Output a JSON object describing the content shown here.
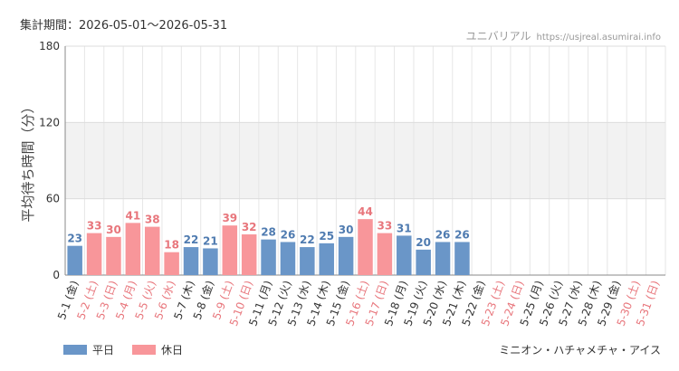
{
  "header": {
    "period": "集計期間：2026-05-01～2026-05-31",
    "site_name": "ユニバリアル",
    "site_url": "https://usjreal.asumirai.info"
  },
  "footer": {
    "attraction": "ミニオン・ハチャメチャ・アイス"
  },
  "colors": {
    "weekday": "#6a96c8",
    "holiday": "#f8969a",
    "weekday_label": "#4f7bb0",
    "holiday_label": "#e8767c",
    "band": "#f2f2f2",
    "grid": "#e6e6e6"
  },
  "chart_data": {
    "type": "bar",
    "ylabel": "平均待ち時間（分）",
    "xlabel": "",
    "ylim": [
      0,
      180
    ],
    "yticks": [
      0,
      60,
      120,
      180
    ],
    "shaded_band": [
      60,
      120
    ],
    "grid": true,
    "legend_position": "bottom-left",
    "series": [
      {
        "name": "平日",
        "key": "weekday"
      },
      {
        "name": "休日",
        "key": "holiday"
      }
    ],
    "categories": [
      "5-1 (金)",
      "5-2 (土)",
      "5-3 (日)",
      "5-4 (月)",
      "5-5 (火)",
      "5-6 (水)",
      "5-7 (木)",
      "5-8 (金)",
      "5-9 (土)",
      "5-10 (日)",
      "5-11 (月)",
      "5-12 (火)",
      "5-13 (水)",
      "5-14 (木)",
      "5-15 (金)",
      "5-16 (土)",
      "5-17 (日)",
      "5-18 (月)",
      "5-19 (火)",
      "5-20 (水)",
      "5-21 (木)",
      "5-22 (金)",
      "5-23 (土)",
      "5-24 (日)",
      "5-25 (月)",
      "5-26 (火)",
      "5-27 (水)",
      "5-28 (木)",
      "5-29 (金)",
      "5-30 (土)",
      "5-31 (日)"
    ],
    "day_type": [
      "weekday",
      "holiday",
      "holiday",
      "holiday",
      "holiday",
      "holiday",
      "weekday",
      "weekday",
      "holiday",
      "holiday",
      "weekday",
      "weekday",
      "weekday",
      "weekday",
      "weekday",
      "holiday",
      "holiday",
      "weekday",
      "weekday",
      "weekday",
      "weekday",
      "weekday",
      "holiday",
      "holiday",
      "weekday",
      "weekday",
      "weekday",
      "weekday",
      "weekday",
      "holiday",
      "holiday"
    ],
    "values": [
      23,
      33,
      30,
      41,
      38,
      18,
      22,
      21,
      39,
      32,
      28,
      26,
      22,
      25,
      30,
      44,
      33,
      31,
      20,
      26,
      26,
      null,
      null,
      null,
      null,
      null,
      null,
      null,
      null,
      null,
      null
    ]
  }
}
